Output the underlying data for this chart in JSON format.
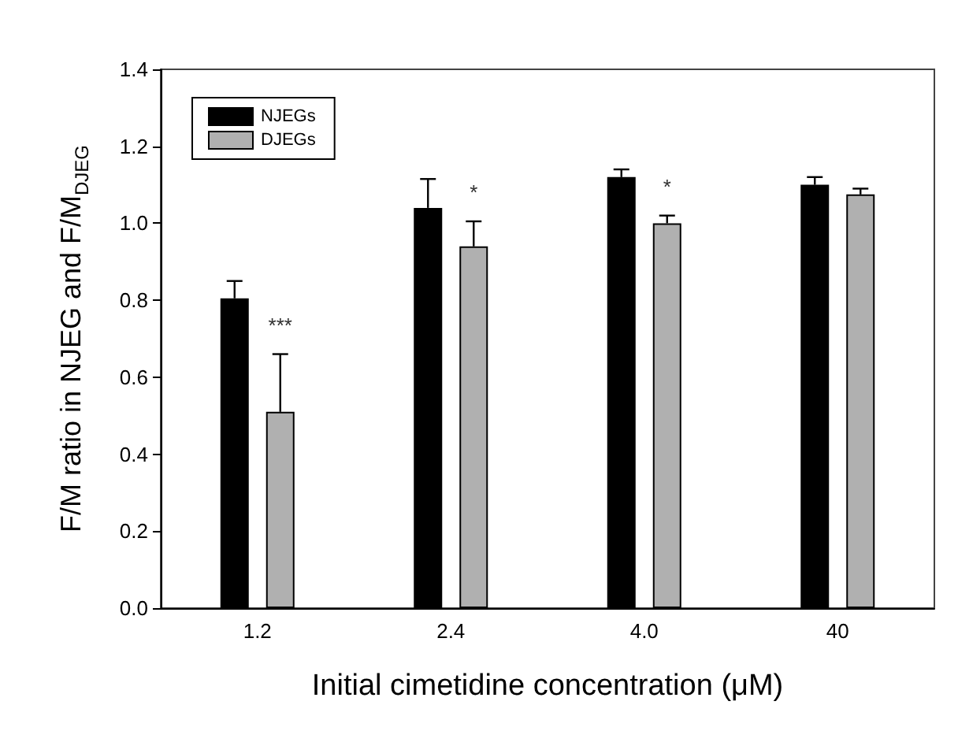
{
  "chart_data": {
    "type": "bar",
    "xlabel": "Initial cimetidine concentration (μM)",
    "ylabel": "F/M ratio in NJEG and F/M$_{DJEG}$",
    "categories": [
      "1.2",
      "2.4",
      "4.0",
      "40"
    ],
    "series": [
      {
        "name": "NJEGs",
        "color": "#000000",
        "values": [
          0.805,
          1.04,
          1.12,
          1.1
        ],
        "errors": [
          [
            0.805,
            0.85
          ],
          [
            1.04,
            1.115
          ],
          [
            1.12,
            1.14
          ],
          [
            1.1,
            1.12
          ]
        ]
      },
      {
        "name": "DJEGs",
        "color": "#b0b0b0",
        "values": [
          0.51,
          0.94,
          1.0,
          1.075
        ],
        "errors": [
          [
            0.51,
            0.66
          ],
          [
            0.94,
            1.005
          ],
          [
            1.0,
            1.02
          ],
          [
            1.075,
            1.09
          ]
        ]
      }
    ],
    "annotations": [
      "***",
      "*",
      "*"
    ],
    "ylim": [
      0,
      1.4
    ],
    "yticks": [
      {
        "value": 0,
        "label": "0.0"
      },
      0.2,
      0.4,
      0.6,
      0.8,
      {
        "value": 1,
        "label": "1.0"
      },
      1.2,
      1.4
    ],
    "grid": false,
    "legend": "top left"
  }
}
